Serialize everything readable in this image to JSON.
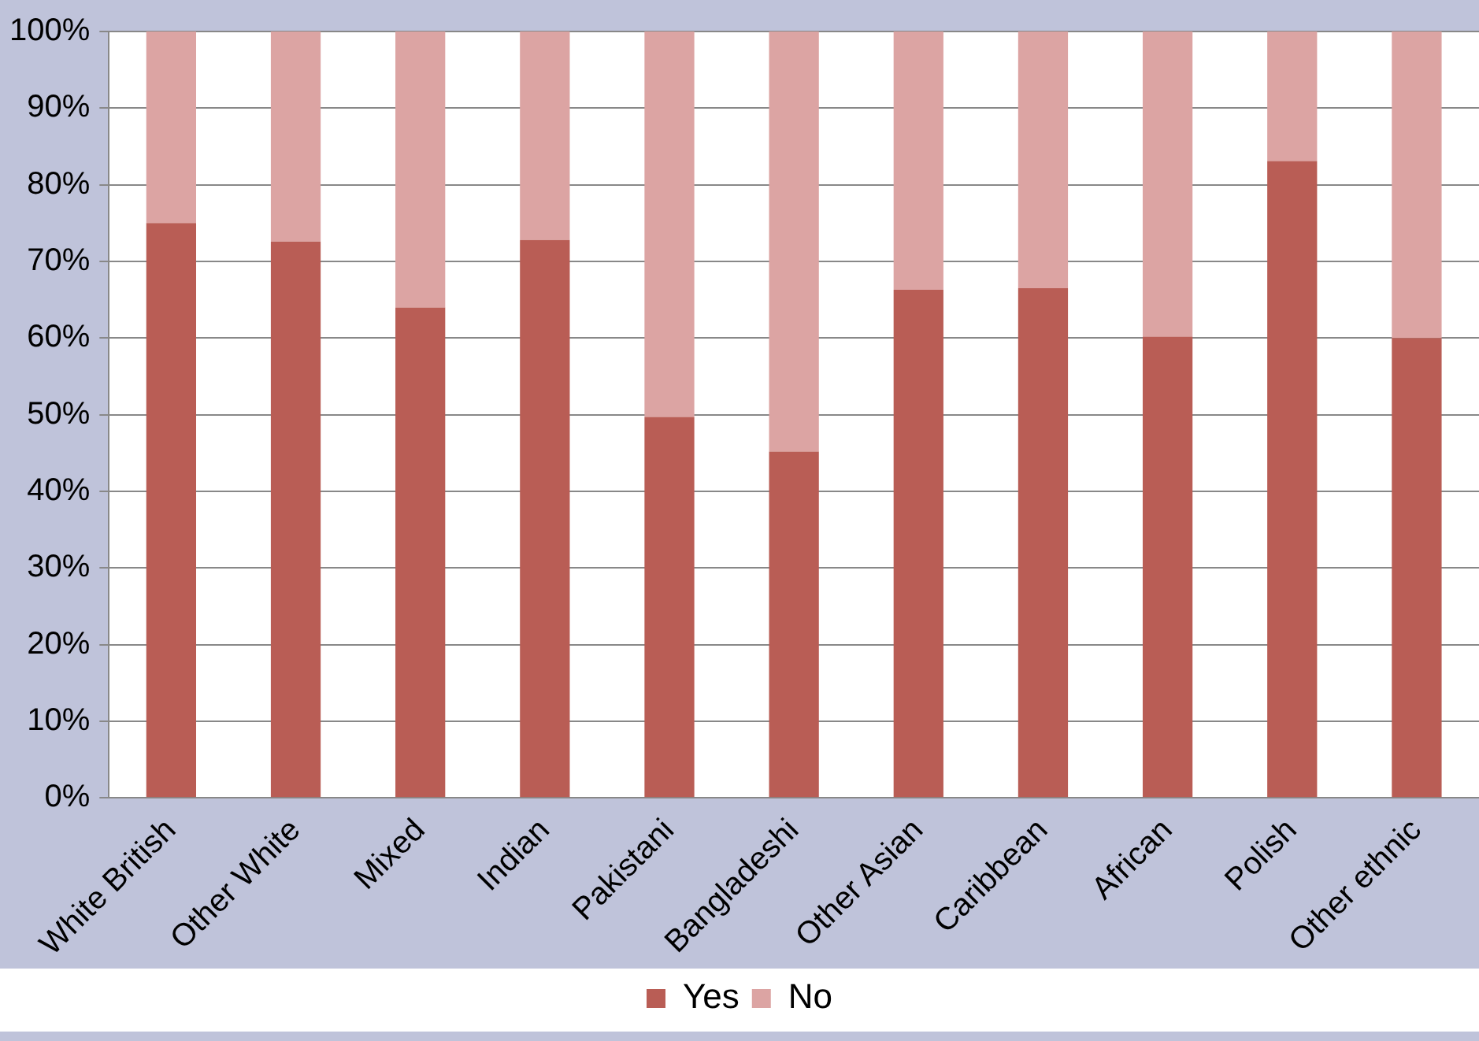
{
  "chart_data": {
    "type": "bar",
    "stacked": true,
    "categories": [
      "White British",
      "Other White",
      "Mixed",
      "Indian",
      "Pakistani",
      "Bangladeshi",
      "Other Asian",
      "Caribbean",
      "African",
      "Polish",
      "Other ethnic"
    ],
    "series": [
      {
        "name": "Yes",
        "color": "#b95d55",
        "values": [
          75,
          72.6,
          64,
          72.8,
          49.7,
          45.2,
          66.3,
          66.5,
          60.2,
          83.1,
          60
        ]
      },
      {
        "name": "No",
        "color": "#dca4a3",
        "values": [
          25,
          27.4,
          36,
          27.2,
          50.3,
          54.8,
          33.7,
          33.5,
          39.8,
          16.9,
          40
        ]
      }
    ],
    "ylim": [
      0,
      100
    ],
    "yticks": [
      {
        "value": 0,
        "label": "0%"
      },
      {
        "value": 10,
        "label": "10%"
      },
      {
        "value": 20,
        "label": "20%"
      },
      {
        "value": 30,
        "label": "30%"
      },
      {
        "value": 40,
        "label": "40%"
      },
      {
        "value": 50,
        "label": "50%"
      },
      {
        "value": 60,
        "label": "60%"
      },
      {
        "value": 70,
        "label": "70%"
      },
      {
        "value": 80,
        "label": "80%"
      },
      {
        "value": 90,
        "label": "90%"
      },
      {
        "value": 100,
        "label": "100%"
      }
    ],
    "grid": "y",
    "legend": "bottom"
  }
}
